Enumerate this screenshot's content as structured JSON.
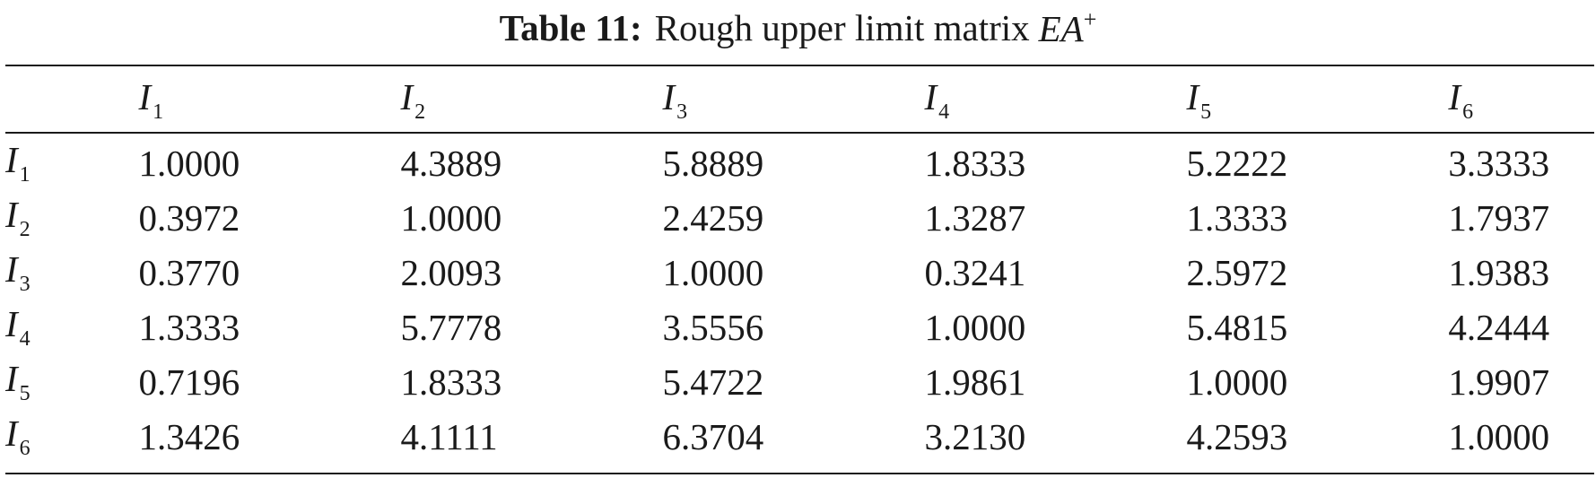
{
  "caption": {
    "label": "Table 11:",
    "text": "Rough upper limit matrix",
    "symbol": "EA",
    "symbol_sup": "+"
  },
  "table": {
    "symbol": "I",
    "columns": [
      {
        "sub": "1"
      },
      {
        "sub": "2"
      },
      {
        "sub": "3"
      },
      {
        "sub": "4"
      },
      {
        "sub": "5"
      },
      {
        "sub": "6"
      }
    ],
    "rows": [
      {
        "sub": "1",
        "values": [
          "1.0000",
          "4.3889",
          "5.8889",
          "1.8333",
          "5.2222",
          "3.3333"
        ]
      },
      {
        "sub": "2",
        "values": [
          "0.3972",
          "1.0000",
          "2.4259",
          "1.3287",
          "1.3333",
          "1.7937"
        ]
      },
      {
        "sub": "3",
        "values": [
          "0.3770",
          "2.0093",
          "1.0000",
          "0.3241",
          "2.5972",
          "1.9383"
        ]
      },
      {
        "sub": "4",
        "values": [
          "1.3333",
          "5.7778",
          "3.5556",
          "1.0000",
          "5.4815",
          "4.2444"
        ]
      },
      {
        "sub": "5",
        "values": [
          "0.7196",
          "1.8333",
          "5.4722",
          "1.9861",
          "1.0000",
          "1.9907"
        ]
      },
      {
        "sub": "6",
        "values": [
          "1.3426",
          "4.1111",
          "6.3704",
          "3.2130",
          "4.2593",
          "1.0000"
        ]
      }
    ]
  }
}
